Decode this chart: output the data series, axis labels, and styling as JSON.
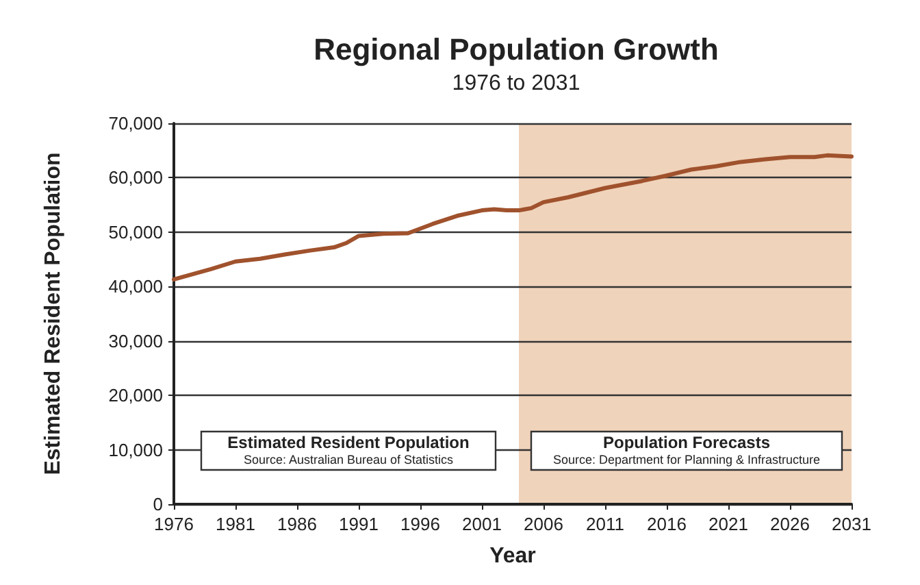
{
  "chart_data": {
    "type": "line",
    "title": "Regional Population Growth",
    "subtitle": "1976 to 2031",
    "xlabel": "Year",
    "ylabel": "Estimated Resident Population",
    "x": [
      1976,
      1979,
      1981,
      1983,
      1985,
      1987,
      1989,
      1990,
      1991,
      1993,
      1995,
      1997,
      1999,
      2001,
      2002,
      2003,
      2004,
      2005,
      2006,
      2008,
      2011,
      2014,
      2016,
      2018,
      2020,
      2022,
      2024,
      2026,
      2028,
      2029,
      2031
    ],
    "series": [
      {
        "color": "#a0522d",
        "values": [
          41300,
          43200,
          44600,
          45100,
          45900,
          46600,
          47200,
          48000,
          49300,
          49700,
          49800,
          51500,
          53000,
          54000,
          54200,
          54000,
          54000,
          54400,
          55500,
          56400,
          58100,
          59400,
          60400,
          61500,
          62100,
          62900,
          63400,
          63800,
          63800,
          64100,
          63900
        ]
      }
    ],
    "xlim": [
      1976,
      2031
    ],
    "xticks": [
      1976,
      1981,
      1986,
      1991,
      1996,
      2001,
      2006,
      2011,
      2016,
      2021,
      2026,
      2031
    ],
    "ylim": [
      0,
      70000
    ],
    "yticks": [
      {
        "value": 0,
        "label": "0"
      },
      {
        "value": 10000,
        "label": "10,000"
      },
      {
        "value": 20000,
        "label": "20,000"
      },
      {
        "value": 30000,
        "label": "30,000"
      },
      {
        "value": 40000,
        "label": "40,000"
      },
      {
        "value": 50000,
        "label": "50,000"
      },
      {
        "value": 60000,
        "label": "60,000"
      },
      {
        "value": 70000,
        "label": "70,000"
      }
    ],
    "grid": "y",
    "marker": "none",
    "line_style": "solid",
    "bands": [
      {
        "axis": "x",
        "from": 2004,
        "to": 2031,
        "color": "#f0d3bb"
      }
    ],
    "annotations": [
      "Estimated Resident Population",
      "Source: Australian Bureau of Statistics",
      "Population Forecasts",
      "Source: Department for Planning & Infrastructure"
    ]
  }
}
